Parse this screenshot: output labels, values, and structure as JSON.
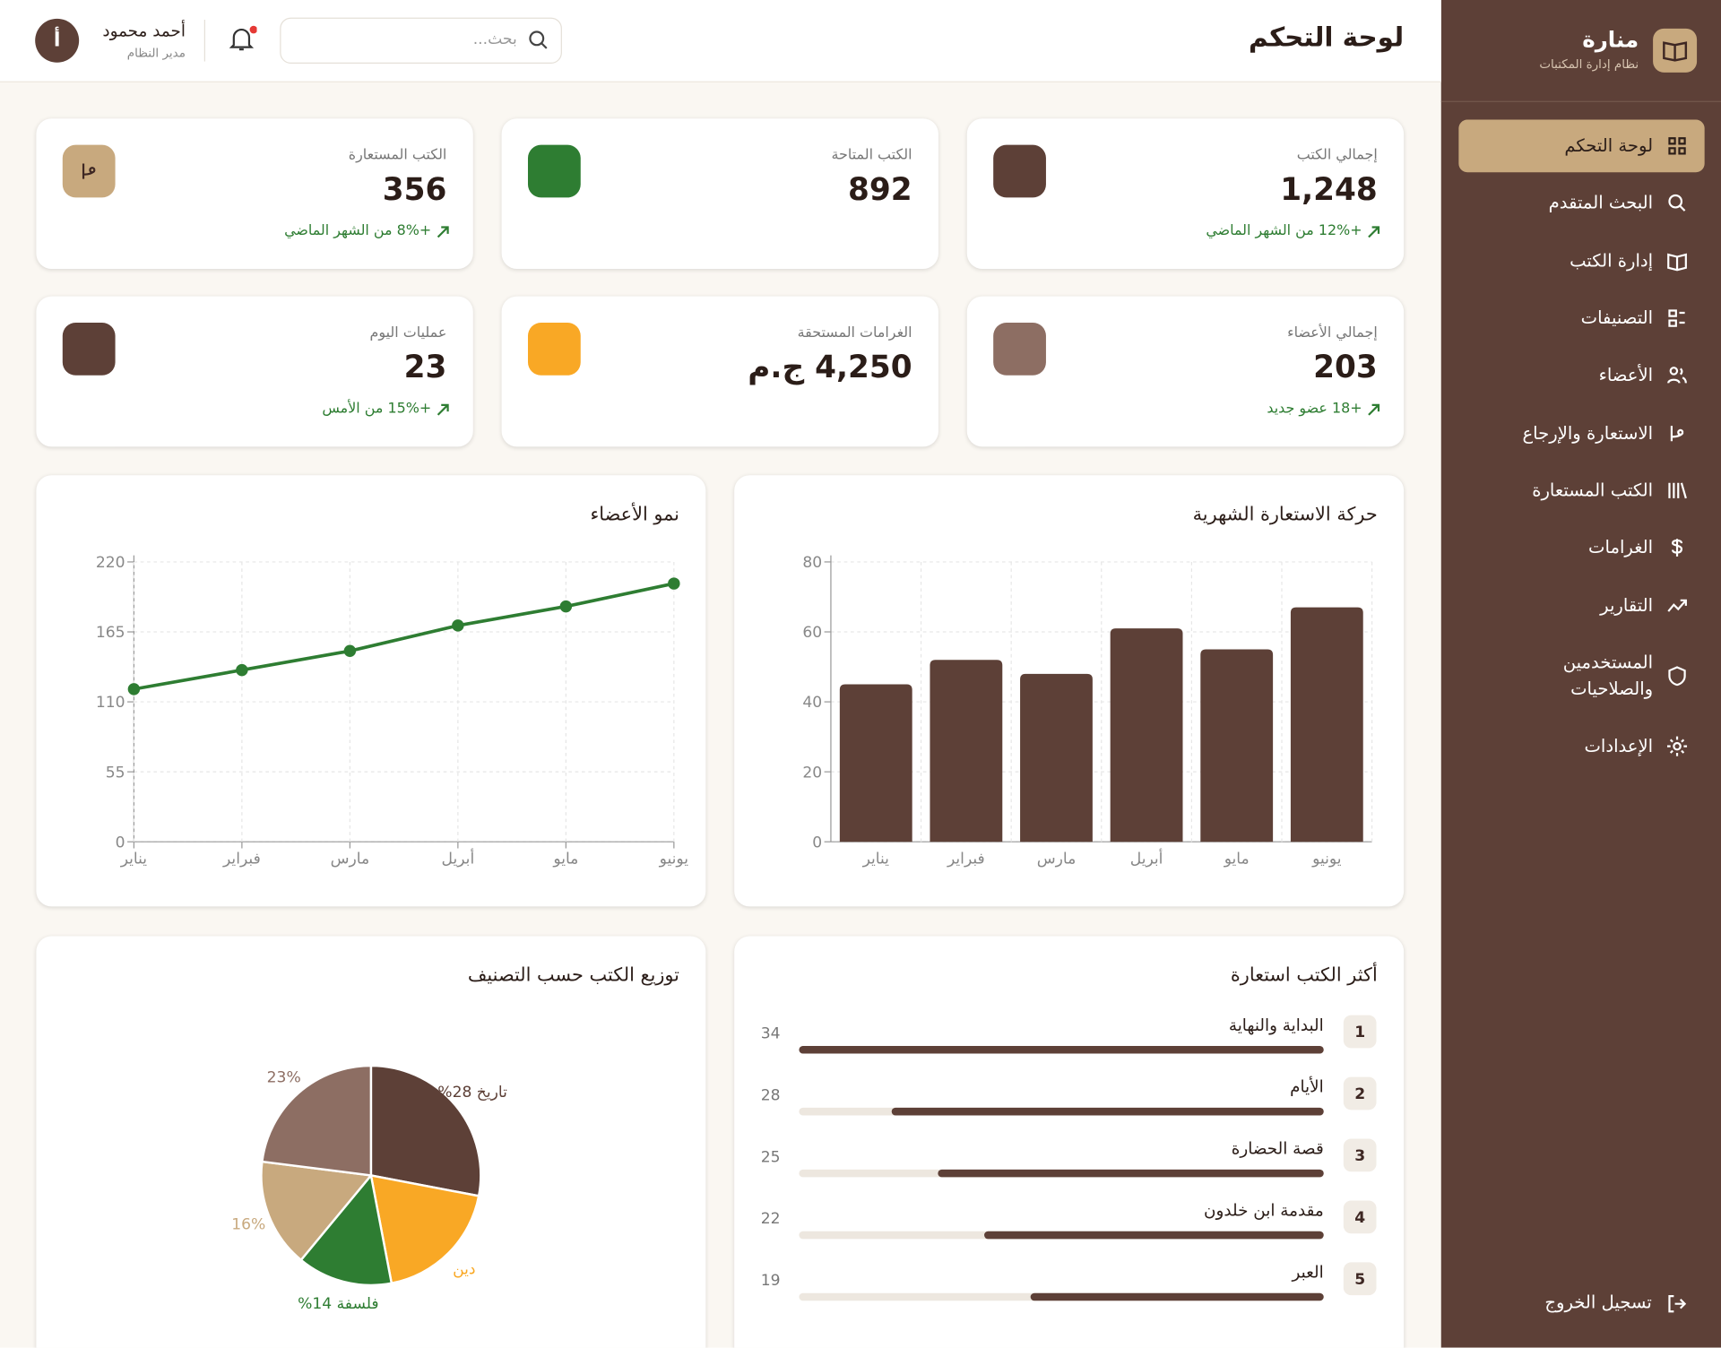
{
  "sidebar": {
    "brand": "منارة",
    "tagline": "نظام إدارة المكتبات",
    "menu": [
      "لوحة التحكم",
      "البحث المتقدم",
      "إدارة الكتب",
      "التصنيفات",
      "الأعضاء",
      "الاستعارة والإرجاع",
      "الكتب المستعارة",
      "الغرامات",
      "التقارير",
      "المستخدمين والصلاحيات",
      "الإعدادات"
    ],
    "logout": "تسجيل الخروج"
  },
  "header": {
    "title": "لوحة التحكم",
    "search_placeholder": "بحث...",
    "user_name": "أحمد محمود",
    "user_role": "مدير النظام",
    "avatar": "أ"
  },
  "stats": [
    {
      "label": "إجمالي الكتب",
      "value": "1,248",
      "trend": "+12% من الشهر الماضي",
      "color": "#5d4037"
    },
    {
      "label": "الكتب المتاحة",
      "value": "892",
      "color": "#2e7d32"
    },
    {
      "label": "الكتب المستعارة",
      "value": "356",
      "trend": "+8% من الشهر الماضي",
      "color": "#c8a97e"
    },
    {
      "label": "إجمالي الأعضاء",
      "value": "203",
      "trend": "+18 عضو جديد",
      "color": "#8d6e63"
    },
    {
      "label": "الغرامات المستحقة",
      "value": "4,250 ج.م",
      "color": "#f9a825"
    },
    {
      "label": "عمليات اليوم",
      "value": "23",
      "trend": "+15% من الأمس",
      "color": "#5d4037"
    }
  ],
  "chart_data": [
    {
      "type": "bar",
      "title": "حركة الاستعارة الشهرية",
      "categories": [
        "يناير",
        "فبراير",
        "مارس",
        "أبريل",
        "مايو",
        "يونيو"
      ],
      "values": [
        45,
        52,
        48,
        61,
        55,
        67
      ],
      "color": "#5d4037",
      "ylim": [
        0,
        80
      ],
      "yticks": [
        0,
        20,
        40,
        60,
        80
      ],
      "grid": true
    },
    {
      "type": "line",
      "title": "نمو الأعضاء",
      "categories": [
        "يناير",
        "فبراير",
        "مارس",
        "أبريل",
        "مايو",
        "يونيو"
      ],
      "values": [
        120,
        135,
        150,
        170,
        185,
        203
      ],
      "color": "#2e7d32",
      "ylim": [
        0,
        220
      ],
      "yticks": [
        0,
        55,
        110,
        165,
        220
      ],
      "grid": true
    },
    {
      "type": "pie",
      "title": "توزيع الكتب حسب التصنيف",
      "categories": [
        "تاريخ",
        "دين",
        "فلسفة",
        null,
        null
      ],
      "values": [
        28,
        19,
        14,
        16,
        23
      ],
      "value_labels": [
        "تاريخ 28%",
        "دين",
        "فلسفة 14%",
        "16%",
        "23%"
      ],
      "colors": [
        "#5d4037",
        "#f9a825",
        "#2e7d32",
        "#c8a97e",
        "#8d6e63"
      ]
    },
    {
      "type": "hbar",
      "title": "أكثر الكتب استعارة",
      "ranks": [
        "1",
        "2",
        "3",
        "4",
        "5"
      ],
      "categories": [
        "البداية والنهاية",
        "الأيام",
        "قصة الحضارة",
        "مقدمة ابن خلدون",
        "العبر"
      ],
      "values": [
        34,
        28,
        25,
        22,
        19
      ],
      "xlim": [
        0,
        34
      ],
      "color": "#5d4037"
    }
  ]
}
